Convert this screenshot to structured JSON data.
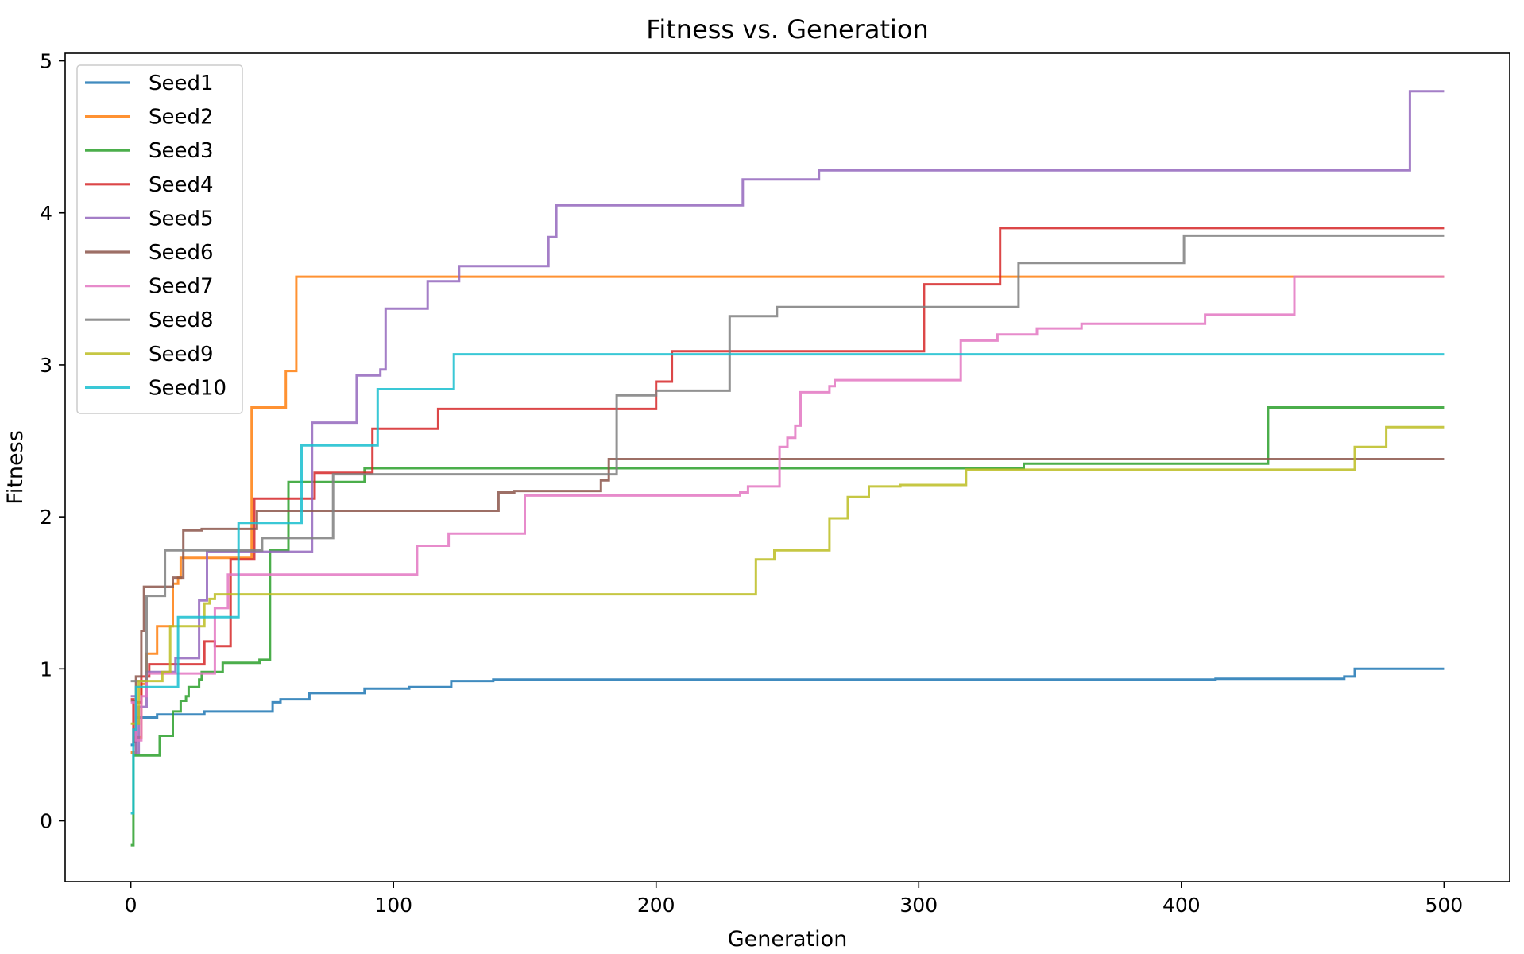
{
  "chart_data": {
    "type": "line",
    "title": "Fitness vs. Generation",
    "xlabel": "Generation",
    "ylabel": "Fitness",
    "xlim": [
      -25,
      525
    ],
    "ylim": [
      -0.4,
      5.05
    ],
    "xticks": [
      0,
      100,
      200,
      300,
      400,
      500
    ],
    "yticks": [
      0,
      1,
      2,
      3,
      4,
      5
    ],
    "grid": false,
    "legend_position": "top-left",
    "line_style": "step",
    "series": [
      {
        "name": "Seed1",
        "color": "#1f77b4",
        "points": [
          [
            0,
            0.5
          ],
          [
            1,
            0.6
          ],
          [
            2,
            0.68
          ],
          [
            8,
            0.68
          ],
          [
            10,
            0.7
          ],
          [
            27,
            0.7
          ],
          [
            28,
            0.72
          ],
          [
            53,
            0.72
          ],
          [
            54,
            0.78
          ],
          [
            57,
            0.8
          ],
          [
            67,
            0.8
          ],
          [
            68,
            0.84
          ],
          [
            88,
            0.84
          ],
          [
            89,
            0.87
          ],
          [
            105,
            0.87
          ],
          [
            106,
            0.88
          ],
          [
            121,
            0.88
          ],
          [
            122,
            0.92
          ],
          [
            137,
            0.92
          ],
          [
            138,
            0.93
          ],
          [
            412,
            0.93
          ],
          [
            413,
            0.935
          ],
          [
            460,
            0.935
          ],
          [
            462,
            0.95
          ],
          [
            465,
            0.95
          ],
          [
            466,
            1.0
          ],
          [
            500,
            1.0
          ]
        ]
      },
      {
        "name": "Seed2",
        "color": "#ff7f0e",
        "points": [
          [
            0,
            0.45
          ],
          [
            2,
            0.55
          ],
          [
            4,
            0.9
          ],
          [
            6,
            1.1
          ],
          [
            9,
            1.1
          ],
          [
            10,
            1.28
          ],
          [
            15,
            1.28
          ],
          [
            16,
            1.56
          ],
          [
            18,
            1.6
          ],
          [
            19,
            1.73
          ],
          [
            45,
            1.73
          ],
          [
            46,
            2.72
          ],
          [
            58,
            2.72
          ],
          [
            59,
            2.96
          ],
          [
            62,
            2.96
          ],
          [
            63,
            3.58
          ],
          [
            500,
            3.58
          ]
        ]
      },
      {
        "name": "Seed3",
        "color": "#2ca02c",
        "points": [
          [
            0,
            -0.16
          ],
          [
            1,
            0.43
          ],
          [
            9,
            0.43
          ],
          [
            11,
            0.56
          ],
          [
            15,
            0.56
          ],
          [
            16,
            0.72
          ],
          [
            18,
            0.72
          ],
          [
            19,
            0.79
          ],
          [
            21,
            0.82
          ],
          [
            22,
            0.88
          ],
          [
            25,
            0.88
          ],
          [
            26,
            0.93
          ],
          [
            27,
            0.98
          ],
          [
            33,
            0.98
          ],
          [
            35,
            1.04
          ],
          [
            48,
            1.04
          ],
          [
            49,
            1.06
          ],
          [
            52,
            1.06
          ],
          [
            53,
            1.78
          ],
          [
            59,
            1.78
          ],
          [
            60,
            2.23
          ],
          [
            88,
            2.23
          ],
          [
            89,
            2.32
          ],
          [
            339,
            2.32
          ],
          [
            340,
            2.35
          ],
          [
            432,
            2.35
          ],
          [
            433,
            2.72
          ],
          [
            500,
            2.72
          ]
        ]
      },
      {
        "name": "Seed4",
        "color": "#d62728",
        "points": [
          [
            0,
            0.8
          ],
          [
            1,
            0.52
          ],
          [
            2,
            0.78
          ],
          [
            4,
            0.95
          ],
          [
            7,
            1.03
          ],
          [
            27,
            1.03
          ],
          [
            28,
            1.18
          ],
          [
            30,
            1.18
          ],
          [
            32,
            1.15
          ],
          [
            37,
            1.15
          ],
          [
            38,
            1.72
          ],
          [
            46,
            1.72
          ],
          [
            47,
            2.12
          ],
          [
            68,
            2.12
          ],
          [
            70,
            2.29
          ],
          [
            91,
            2.29
          ],
          [
            92,
            2.58
          ],
          [
            116,
            2.58
          ],
          [
            117,
            2.71
          ],
          [
            199,
            2.71
          ],
          [
            200,
            2.89
          ],
          [
            205,
            2.89
          ],
          [
            206,
            3.09
          ],
          [
            301,
            3.09
          ],
          [
            302,
            3.53
          ],
          [
            330,
            3.53
          ],
          [
            331,
            3.9
          ],
          [
            500,
            3.9
          ]
        ]
      },
      {
        "name": "Seed5",
        "color": "#9467bd",
        "points": [
          [
            0,
            0.82
          ],
          [
            2,
            0.45
          ],
          [
            3,
            0.75
          ],
          [
            6,
            0.98
          ],
          [
            15,
            0.98
          ],
          [
            17,
            1.07
          ],
          [
            25,
            1.07
          ],
          [
            26,
            1.45
          ],
          [
            28,
            1.45
          ],
          [
            29,
            1.77
          ],
          [
            68,
            1.77
          ],
          [
            69,
            2.62
          ],
          [
            85,
            2.62
          ],
          [
            86,
            2.93
          ],
          [
            94,
            2.93
          ],
          [
            95,
            2.97
          ],
          [
            97,
            3.37
          ],
          [
            112,
            3.37
          ],
          [
            113,
            3.55
          ],
          [
            124,
            3.55
          ],
          [
            125,
            3.65
          ],
          [
            158,
            3.65
          ],
          [
            159,
            3.84
          ],
          [
            161,
            3.84
          ],
          [
            162,
            4.05
          ],
          [
            232,
            4.05
          ],
          [
            233,
            4.22
          ],
          [
            261,
            4.22
          ],
          [
            262,
            4.28
          ],
          [
            486,
            4.28
          ],
          [
            487,
            4.8
          ],
          [
            500,
            4.8
          ]
        ]
      },
      {
        "name": "Seed6",
        "color": "#8c564b",
        "points": [
          [
            0,
            0.79
          ],
          [
            2,
            0.95
          ],
          [
            4,
            1.25
          ],
          [
            5,
            1.54
          ],
          [
            14,
            1.54
          ],
          [
            16,
            1.6
          ],
          [
            19,
            1.6
          ],
          [
            20,
            1.91
          ],
          [
            26,
            1.91
          ],
          [
            27,
            1.92
          ],
          [
            47,
            1.92
          ],
          [
            48,
            2.04
          ],
          [
            137,
            2.04
          ],
          [
            140,
            2.16
          ],
          [
            145,
            2.16
          ],
          [
            146,
            2.17
          ],
          [
            178,
            2.17
          ],
          [
            179,
            2.24
          ],
          [
            181,
            2.24
          ],
          [
            182,
            2.38
          ],
          [
            500,
            2.38
          ]
        ]
      },
      {
        "name": "Seed7",
        "color": "#e377c2",
        "points": [
          [
            0,
            0.78
          ],
          [
            2,
            0.53
          ],
          [
            4,
            0.82
          ],
          [
            6,
            0.97
          ],
          [
            30,
            0.97
          ],
          [
            32,
            1.4
          ],
          [
            35,
            1.4
          ],
          [
            37,
            1.62
          ],
          [
            108,
            1.62
          ],
          [
            109,
            1.81
          ],
          [
            120,
            1.81
          ],
          [
            121,
            1.89
          ],
          [
            148,
            1.89
          ],
          [
            150,
            2.14
          ],
          [
            230,
            2.14
          ],
          [
            232,
            2.16
          ],
          [
            235,
            2.2
          ],
          [
            246,
            2.2
          ],
          [
            247,
            2.46
          ],
          [
            250,
            2.52
          ],
          [
            253,
            2.6
          ],
          [
            255,
            2.82
          ],
          [
            264,
            2.82
          ],
          [
            266,
            2.86
          ],
          [
            268,
            2.9
          ],
          [
            315,
            2.9
          ],
          [
            316,
            3.16
          ],
          [
            328,
            3.16
          ],
          [
            330,
            3.2
          ],
          [
            344,
            3.2
          ],
          [
            345,
            3.24
          ],
          [
            360,
            3.24
          ],
          [
            362,
            3.27
          ],
          [
            408,
            3.27
          ],
          [
            409,
            3.33
          ],
          [
            442,
            3.33
          ],
          [
            443,
            3.58
          ],
          [
            500,
            3.58
          ]
        ]
      },
      {
        "name": "Seed8",
        "color": "#7f7f7f",
        "points": [
          [
            0,
            0.92
          ],
          [
            5,
            0.92
          ],
          [
            6,
            1.48
          ],
          [
            12,
            1.48
          ],
          [
            13,
            1.78
          ],
          [
            49,
            1.78
          ],
          [
            50,
            1.86
          ],
          [
            76,
            1.86
          ],
          [
            77,
            2.28
          ],
          [
            183,
            2.28
          ],
          [
            185,
            2.8
          ],
          [
            199,
            2.8
          ],
          [
            200,
            2.83
          ],
          [
            227,
            2.83
          ],
          [
            228,
            3.32
          ],
          [
            245,
            3.32
          ],
          [
            246,
            3.38
          ],
          [
            337,
            3.38
          ],
          [
            338,
            3.67
          ],
          [
            400,
            3.67
          ],
          [
            401,
            3.85
          ],
          [
            500,
            3.85
          ]
        ]
      },
      {
        "name": "Seed9",
        "color": "#bcbd22",
        "points": [
          [
            0,
            0.64
          ],
          [
            3,
            0.92
          ],
          [
            11,
            0.92
          ],
          [
            12,
            0.98
          ],
          [
            14,
            0.98
          ],
          [
            15,
            1.28
          ],
          [
            27,
            1.28
          ],
          [
            28,
            1.43
          ],
          [
            30,
            1.46
          ],
          [
            32,
            1.49
          ],
          [
            237,
            1.49
          ],
          [
            238,
            1.72
          ],
          [
            244,
            1.72
          ],
          [
            245,
            1.78
          ],
          [
            265,
            1.78
          ],
          [
            266,
            1.99
          ],
          [
            272,
            1.99
          ],
          [
            273,
            2.13
          ],
          [
            279,
            2.13
          ],
          [
            281,
            2.2
          ],
          [
            291,
            2.2
          ],
          [
            293,
            2.21
          ],
          [
            317,
            2.21
          ],
          [
            318,
            2.31
          ],
          [
            465,
            2.31
          ],
          [
            466,
            2.46
          ],
          [
            477,
            2.46
          ],
          [
            478,
            2.59
          ],
          [
            500,
            2.59
          ]
        ]
      },
      {
        "name": "Seed10",
        "color": "#17becf",
        "points": [
          [
            0,
            0.05
          ],
          [
            1,
            0.6
          ],
          [
            2,
            0.88
          ],
          [
            17,
            0.88
          ],
          [
            18,
            1.34
          ],
          [
            38,
            1.34
          ],
          [
            41,
            1.96
          ],
          [
            63,
            1.96
          ],
          [
            65,
            2.47
          ],
          [
            92,
            2.47
          ],
          [
            94,
            2.84
          ],
          [
            122,
            2.84
          ],
          [
            123,
            3.07
          ],
          [
            500,
            3.07
          ]
        ]
      }
    ]
  }
}
